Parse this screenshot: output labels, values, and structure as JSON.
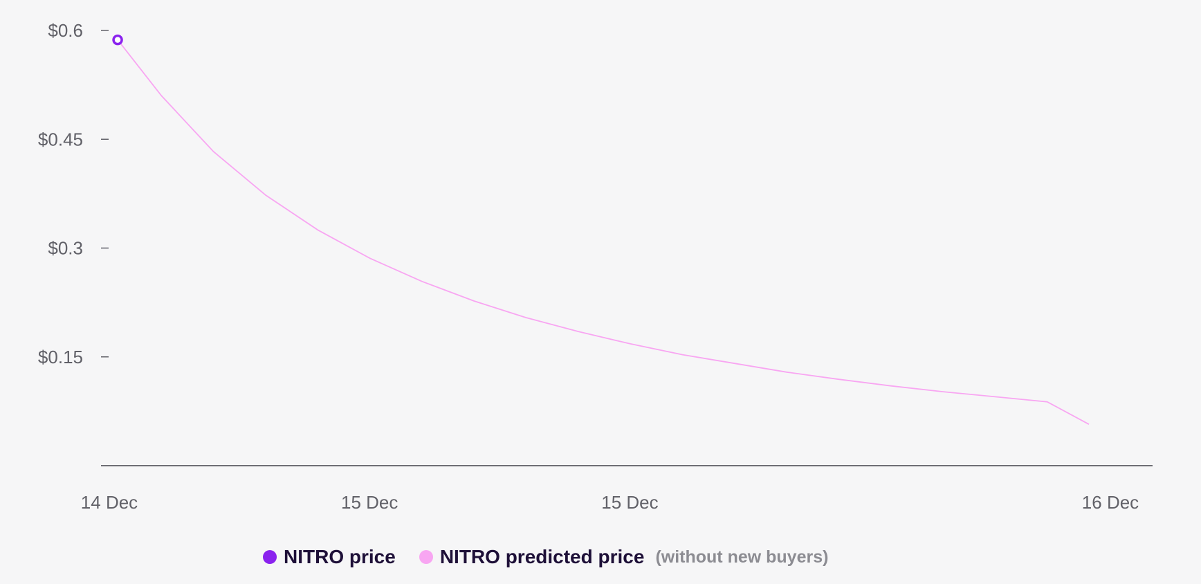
{
  "colors": {
    "actual": "#8a22ee",
    "predicted": "#f8a6f2",
    "axis": "#404048",
    "tick_text": "#616168",
    "legend_text": "#1e1038",
    "legend_note": "#8c8c92"
  },
  "chart_data": {
    "type": "line",
    "title": "",
    "xlabel": "",
    "ylabel": "",
    "yticks": [
      {
        "value": 0.6,
        "label": "$0.6"
      },
      {
        "value": 0.45,
        "label": "$0.45"
      },
      {
        "value": 0.3,
        "label": "$0.3"
      },
      {
        "value": 0.15,
        "label": "$0.15"
      }
    ],
    "ylim": [
      0,
      0.6
    ],
    "xticks": [
      {
        "pos": 0,
        "label": "14 Dec"
      },
      {
        "pos": 0.26,
        "label": "15 Dec"
      },
      {
        "pos": 0.52,
        "label": "15 Dec"
      },
      {
        "pos": 1.0,
        "label": "16 Dec"
      }
    ],
    "grid": false,
    "legend_position": "bottom",
    "series": [
      {
        "name": "NITRO price",
        "x": [
          0.008
        ],
        "values": [
          0.587
        ]
      },
      {
        "name": "NITRO predicted price",
        "x": [
          0.008,
          0.05,
          0.1,
          0.15,
          0.2,
          0.25,
          0.3,
          0.35,
          0.4,
          0.45,
          0.5,
          0.55,
          0.6,
          0.65,
          0.7,
          0.75,
          0.8,
          0.85,
          0.9,
          0.94
        ],
        "values": [
          0.587,
          0.51,
          0.433,
          0.373,
          0.325,
          0.286,
          0.254,
          0.227,
          0.204,
          0.185,
          0.168,
          0.153,
          0.141,
          0.129,
          0.119,
          0.11,
          0.102,
          0.095,
          0.088,
          0.057
        ]
      }
    ]
  },
  "legend": {
    "items": [
      {
        "label": "NITRO price",
        "color": "#8a22ee"
      },
      {
        "label": "NITRO predicted price",
        "note": "(without new buyers)",
        "color": "#f8a6f2"
      }
    ]
  }
}
